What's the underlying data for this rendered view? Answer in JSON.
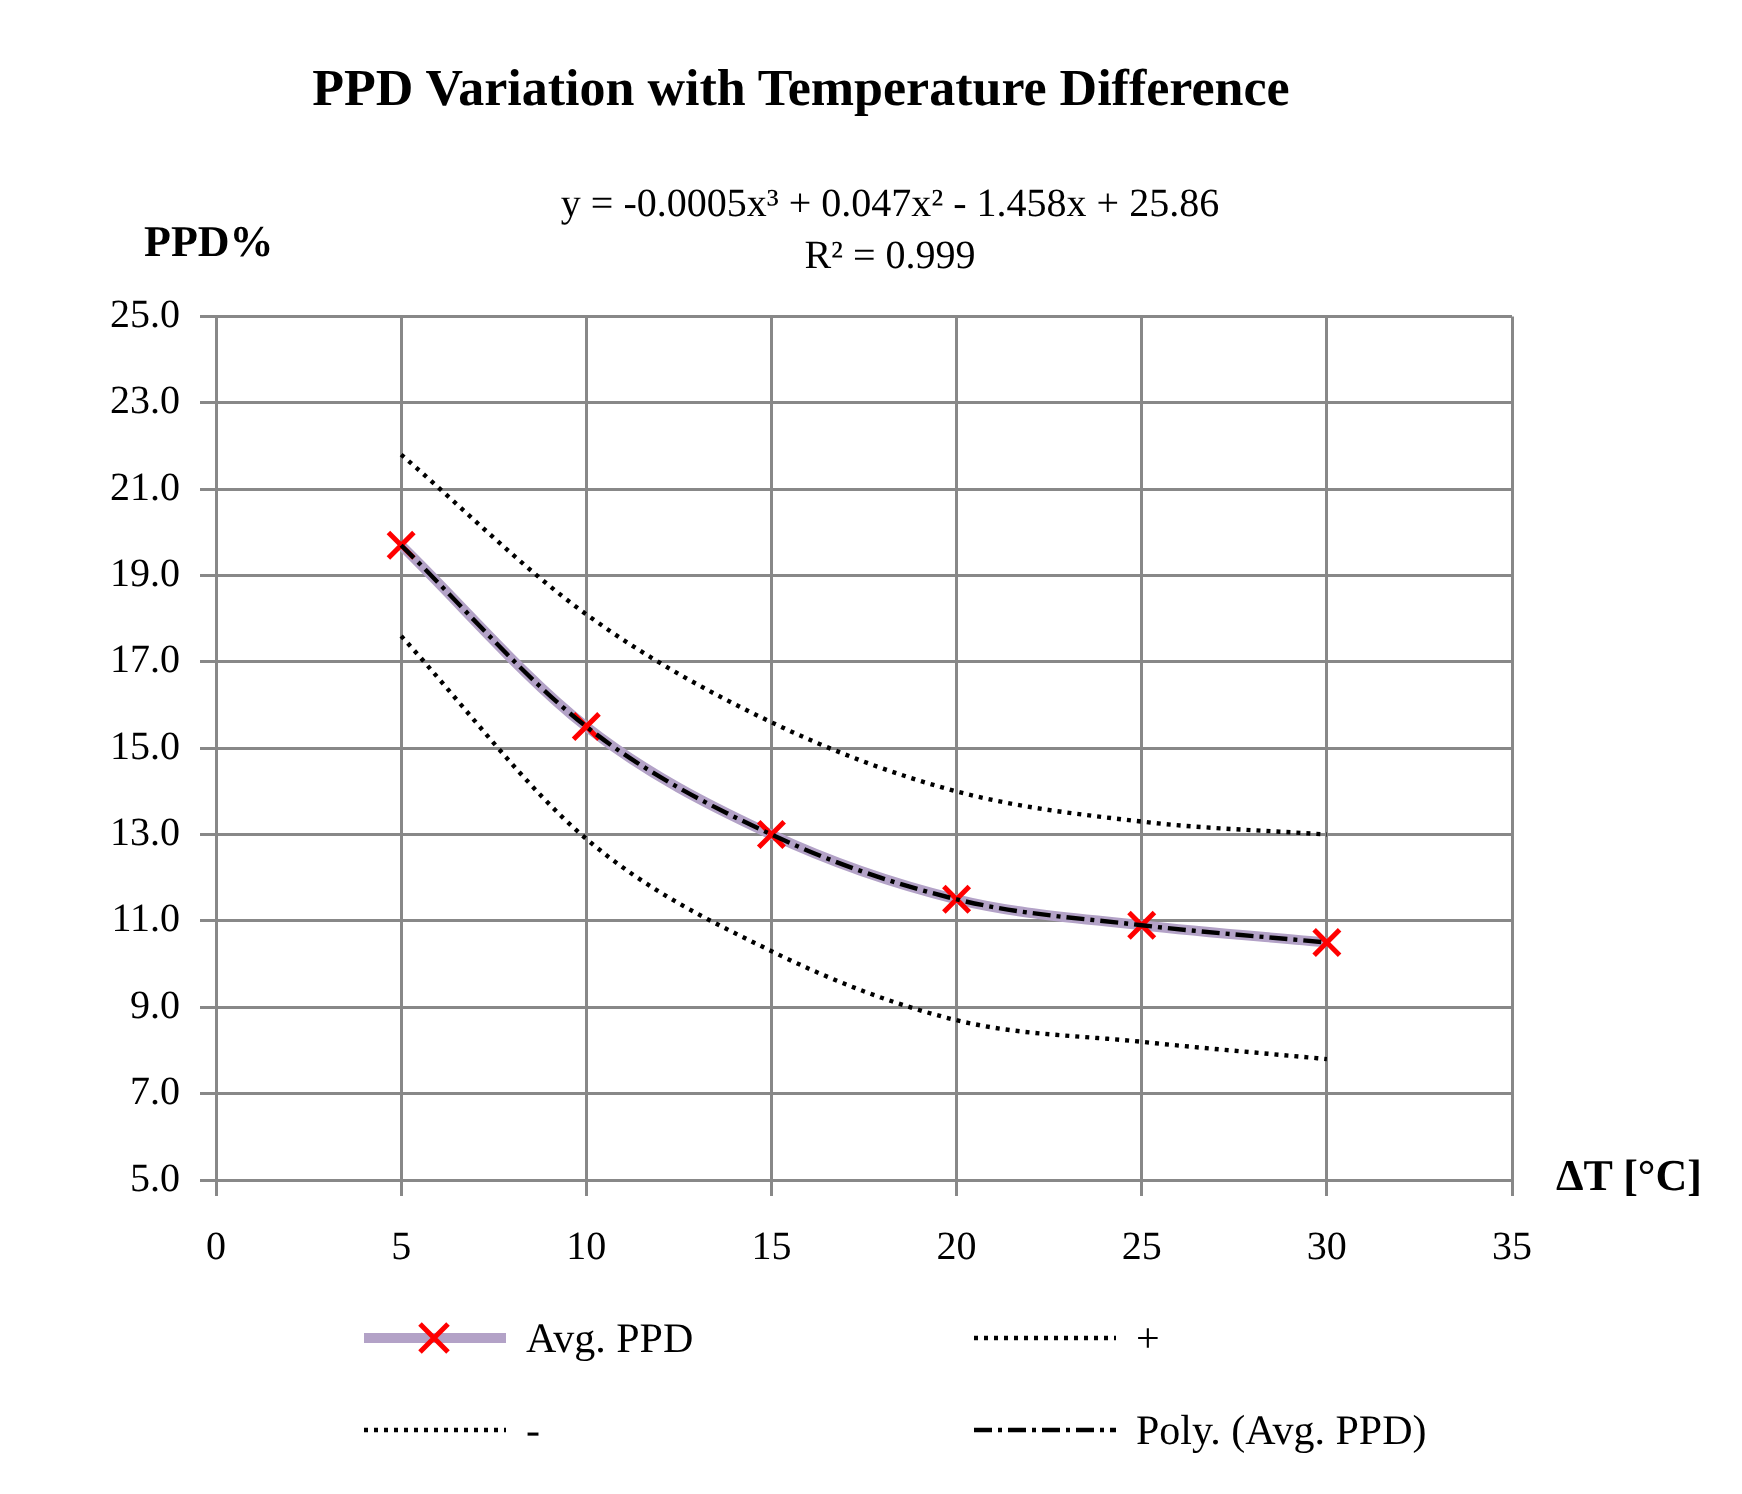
{
  "chart_data": {
    "type": "line",
    "title": "PPD Variation with Temperature Difference",
    "annotations": [
      "y = -0.0005x³ + 0.047x² - 1.458x + 25.86",
      "R² = 0.999"
    ],
    "xlabel": "ΔT [°C]",
    "ylabel": "PPD%",
    "x": [
      5,
      10,
      15,
      20,
      25,
      30
    ],
    "series": [
      {
        "name": "Avg. PPD",
        "color": "#b3a2c7",
        "marker": "cross",
        "line_style": "solid",
        "values": [
          19.7,
          15.5,
          13.0,
          11.5,
          10.9,
          10.5
        ]
      },
      {
        "name": "+",
        "color": "#000000",
        "marker": "none",
        "line_style": "dotted",
        "values": [
          21.8,
          18.1,
          15.6,
          14.0,
          13.3,
          13.0
        ]
      },
      {
        "name": "-",
        "color": "#000000",
        "marker": "none",
        "line_style": "dotted",
        "values": [
          17.6,
          12.9,
          10.3,
          8.7,
          8.2,
          7.8
        ]
      },
      {
        "name": "Poly. (Avg. PPD)",
        "color": "#000000",
        "marker": "none",
        "line_style": "dashed",
        "values": [
          19.7,
          15.5,
          13.0,
          11.5,
          10.9,
          10.5
        ]
      }
    ],
    "xlim": [
      0,
      35
    ],
    "xticks": [
      0,
      5,
      10,
      15,
      20,
      25,
      30,
      35
    ],
    "ylim": [
      5,
      25
    ],
    "yticks": [
      {
        "value": 5,
        "label": "5.0"
      },
      {
        "value": 7,
        "label": "7.0"
      },
      {
        "value": 9,
        "label": "9.0"
      },
      {
        "value": 11,
        "label": "11.0"
      },
      {
        "value": 13,
        "label": "13.0"
      },
      {
        "value": 15,
        "label": "15.0"
      },
      {
        "value": 17,
        "label": "17.0"
      },
      {
        "value": 19,
        "label": "19.0"
      },
      {
        "value": 21,
        "label": "21.0"
      },
      {
        "value": 23,
        "label": "23.0"
      },
      {
        "value": 25,
        "label": "25.0"
      }
    ],
    "grid": true,
    "legend": "bottom"
  }
}
